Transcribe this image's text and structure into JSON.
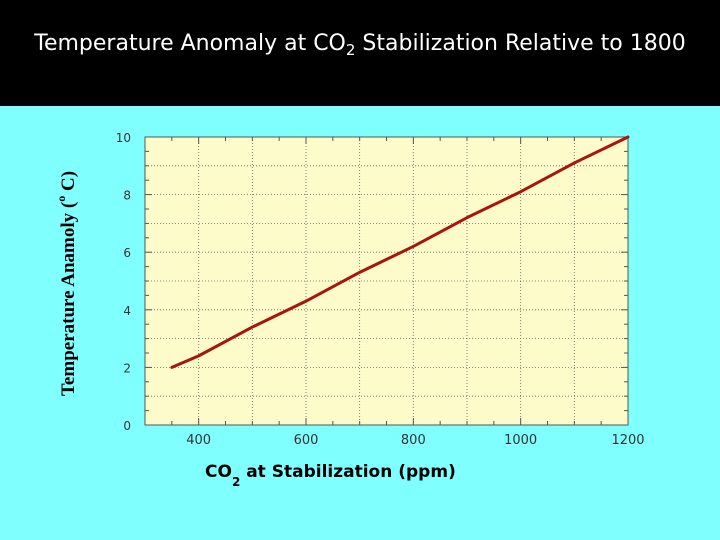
{
  "slide": {
    "title_pre": "Temperature Anomaly at CO",
    "title_sub": "2",
    "title_post": " Stabilization Relative to 1800"
  },
  "colors": {
    "page_bg": "#80ffff",
    "title_bar": "#000000",
    "plot_bg": "#fdfbc9",
    "series_line": "#a8140e"
  },
  "chart_data": {
    "type": "line",
    "title": "",
    "xlabel_pre": "CO",
    "xlabel_sub": "2",
    "xlabel_post": " at Stabilization (ppm)",
    "ylabel_main": "Temperature Anamoly (",
    "ylabel_sup": "o",
    "ylabel_end": " C)",
    "xlim": [
      300,
      1200
    ],
    "ylim": [
      0,
      10
    ],
    "x_ticks": [
      400,
      600,
      800,
      1000,
      1200
    ],
    "y_ticks": [
      0,
      2,
      4,
      6,
      8,
      10
    ],
    "grid": true,
    "series": [
      {
        "x": [
          350,
          400,
          500,
          600,
          700,
          800,
          900,
          1000,
          1100,
          1200
        ],
        "y": [
          2.0,
          2.4,
          3.4,
          4.3,
          5.3,
          6.2,
          7.2,
          8.1,
          9.1,
          10.0
        ]
      }
    ]
  }
}
